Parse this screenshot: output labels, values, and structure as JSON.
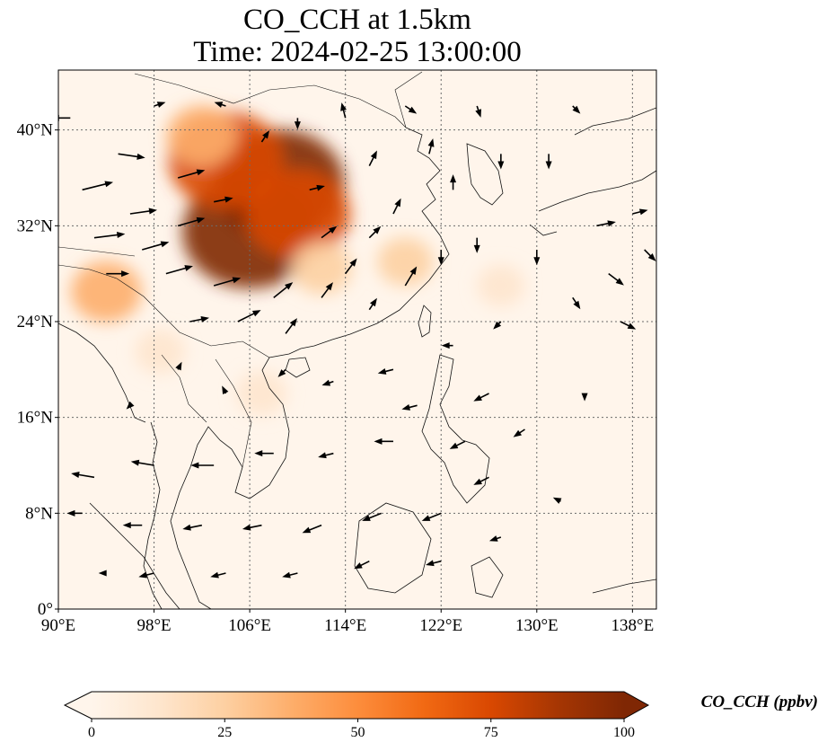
{
  "title": {
    "line1": "CO_CCH at 1.5km",
    "line2": "Time: 2024-02-25 13:00:00"
  },
  "map": {
    "lon_range": [
      90,
      140
    ],
    "lat_range": [
      0,
      45
    ],
    "xticks": [
      {
        "value": 90,
        "label": "90°E"
      },
      {
        "value": 98,
        "label": "98°E"
      },
      {
        "value": 106,
        "label": "106°E"
      },
      {
        "value": 114,
        "label": "114°E"
      },
      {
        "value": 122,
        "label": "122°E"
      },
      {
        "value": 130,
        "label": "130°E"
      },
      {
        "value": 138,
        "label": "138°E"
      }
    ],
    "yticks": [
      {
        "value": 0,
        "label": "0°"
      },
      {
        "value": 8,
        "label": "8°N"
      },
      {
        "value": 16,
        "label": "16°N"
      },
      {
        "value": 24,
        "label": "24°N"
      },
      {
        "value": 32,
        "label": "32°N"
      },
      {
        "value": 40,
        "label": "40°N"
      }
    ],
    "gridlines": true
  },
  "colorbar": {
    "label": "CO_CCH (ppbv)",
    "ticks": [
      {
        "value": 0,
        "label": "0"
      },
      {
        "value": 25,
        "label": "25"
      },
      {
        "value": 50,
        "label": "50"
      },
      {
        "value": 75,
        "label": "75"
      },
      {
        "value": 100,
        "label": "100"
      }
    ],
    "range": [
      0,
      100
    ],
    "extend": "both",
    "colormap": [
      "#fff5eb",
      "#fee6ce",
      "#fdd0a2",
      "#fdae6b",
      "#fd8d3c",
      "#f16913",
      "#d94801",
      "#a63603",
      "#7f2704"
    ]
  },
  "plumes": [
    {
      "lon": 106.0,
      "lat": 31.5,
      "value": 100
    },
    {
      "lon": 108.5,
      "lat": 35.5,
      "value": 95
    },
    {
      "lon": 104.0,
      "lat": 37.5,
      "value": 80
    },
    {
      "lon": 110.0,
      "lat": 33.0,
      "value": 70
    },
    {
      "lon": 102.0,
      "lat": 39.5,
      "value": 35
    },
    {
      "lon": 112.0,
      "lat": 28.5,
      "value": 25
    },
    {
      "lon": 119.0,
      "lat": 29.0,
      "value": 20
    },
    {
      "lon": 94.0,
      "lat": 26.5,
      "value": 35
    },
    {
      "lon": 107.0,
      "lat": 18.0,
      "value": 15
    },
    {
      "lon": 98.5,
      "lat": 21.5,
      "value": 15
    },
    {
      "lon": 127.0,
      "lat": 27.0,
      "value": 12
    }
  ],
  "wind": [
    {
      "lon": 91,
      "lat": 41,
      "u": -5,
      "v": 0
    },
    {
      "lon": 95,
      "lat": 38,
      "u": 7,
      "v": -1
    },
    {
      "lon": 92,
      "lat": 35,
      "u": 8,
      "v": 2
    },
    {
      "lon": 96,
      "lat": 33,
      "u": 7,
      "v": 1
    },
    {
      "lon": 93,
      "lat": 31,
      "u": 8,
      "v": 1
    },
    {
      "lon": 97,
      "lat": 30,
      "u": 7,
      "v": 2
    },
    {
      "lon": 94,
      "lat": 28,
      "u": 6,
      "v": 0
    },
    {
      "lon": 100,
      "lat": 36,
      "u": 7,
      "v": 2
    },
    {
      "lon": 100,
      "lat": 32,
      "u": 7,
      "v": 2
    },
    {
      "lon": 99,
      "lat": 28,
      "u": 7,
      "v": 2
    },
    {
      "lon": 103,
      "lat": 34,
      "u": 5,
      "v": 1
    },
    {
      "lon": 103,
      "lat": 27,
      "u": 7,
      "v": 2
    },
    {
      "lon": 105,
      "lat": 24,
      "u": 6,
      "v": 3
    },
    {
      "lon": 108,
      "lat": 26,
      "u": 5,
      "v": 4
    },
    {
      "lon": 101,
      "lat": 24,
      "u": 5,
      "v": 1
    },
    {
      "lon": 109,
      "lat": 23,
      "u": 3,
      "v": 4
    },
    {
      "lon": 112,
      "lat": 26,
      "u": 3,
      "v": 4
    },
    {
      "lon": 114,
      "lat": 28,
      "u": 3,
      "v": 4
    },
    {
      "lon": 116,
      "lat": 25,
      "u": 2,
      "v": 3
    },
    {
      "lon": 119,
      "lat": 27,
      "u": 3,
      "v": 5
    },
    {
      "lon": 118,
      "lat": 33,
      "u": 2,
      "v": 4
    },
    {
      "lon": 116,
      "lat": 37,
      "u": 2,
      "v": 4
    },
    {
      "lon": 114,
      "lat": 41,
      "u": -1,
      "v": 4
    },
    {
      "lon": 121,
      "lat": 38,
      "u": 1,
      "v": 4
    },
    {
      "lon": 123,
      "lat": 35,
      "u": 0,
      "v": 4
    },
    {
      "lon": 125,
      "lat": 31,
      "u": 0,
      "v": -4
    },
    {
      "lon": 127,
      "lat": 38,
      "u": 0,
      "v": -4
    },
    {
      "lon": 131,
      "lat": 38,
      "u": 0,
      "v": -4
    },
    {
      "lon": 130,
      "lat": 30,
      "u": 0,
      "v": -4
    },
    {
      "lon": 133,
      "lat": 26,
      "u": 2,
      "v": -3
    },
    {
      "lon": 135,
      "lat": 32,
      "u": 5,
      "v": 1
    },
    {
      "lon": 139,
      "lat": 30,
      "u": 3,
      "v": -3
    },
    {
      "lon": 137,
      "lat": 24,
      "u": 4,
      "v": -2
    },
    {
      "lon": 136,
      "lat": 28,
      "u": 4,
      "v": -3
    },
    {
      "lon": 127,
      "lat": 24,
      "u": -2,
      "v": -2
    },
    {
      "lon": 123,
      "lat": 22,
      "u": -3,
      "v": 0
    },
    {
      "lon": 118,
      "lat": 20,
      "u": -4,
      "v": -1
    },
    {
      "lon": 113,
      "lat": 19,
      "u": -3,
      "v": -1
    },
    {
      "lon": 109,
      "lat": 20,
      "u": -2,
      "v": -2
    },
    {
      "lon": 120,
      "lat": 17,
      "u": -4,
      "v": -1
    },
    {
      "lon": 126,
      "lat": 18,
      "u": -4,
      "v": -2
    },
    {
      "lon": 129,
      "lat": 15,
      "u": -3,
      "v": -2
    },
    {
      "lon": 124,
      "lat": 14,
      "u": -4,
      "v": -2
    },
    {
      "lon": 118,
      "lat": 14,
      "u": -5,
      "v": 0
    },
    {
      "lon": 113,
      "lat": 13,
      "u": -4,
      "v": -1
    },
    {
      "lon": 108,
      "lat": 13,
      "u": -5,
      "v": 0
    },
    {
      "lon": 103,
      "lat": 12,
      "u": -6,
      "v": 0
    },
    {
      "lon": 98,
      "lat": 12,
      "u": -6,
      "v": 1
    },
    {
      "lon": 93,
      "lat": 11,
      "u": -6,
      "v": 1
    },
    {
      "lon": 92,
      "lat": 8,
      "u": -4,
      "v": 0
    },
    {
      "lon": 97,
      "lat": 7,
      "u": -5,
      "v": 0
    },
    {
      "lon": 102,
      "lat": 7,
      "u": -5,
      "v": -1
    },
    {
      "lon": 107,
      "lat": 7,
      "u": -5,
      "v": -1
    },
    {
      "lon": 112,
      "lat": 7,
      "u": -5,
      "v": -2
    },
    {
      "lon": 117,
      "lat": 8,
      "u": -5,
      "v": -2
    },
    {
      "lon": 122,
      "lat": 8,
      "u": -5,
      "v": -2
    },
    {
      "lon": 126,
      "lat": 11,
      "u": -4,
      "v": -2
    },
    {
      "lon": 127,
      "lat": 6,
      "u": -3,
      "v": -1
    },
    {
      "lon": 122,
      "lat": 4,
      "u": -4,
      "v": -1
    },
    {
      "lon": 116,
      "lat": 4,
      "u": -4,
      "v": -2
    },
    {
      "lon": 110,
      "lat": 3,
      "u": -4,
      "v": -1
    },
    {
      "lon": 104,
      "lat": 3,
      "u": -4,
      "v": -1
    },
    {
      "lon": 98,
      "lat": 3,
      "u": -4,
      "v": -1
    },
    {
      "lon": 94,
      "lat": 3,
      "u": -2,
      "v": 0
    },
    {
      "lon": 132,
      "lat": 9,
      "u": -2,
      "v": 1
    },
    {
      "lon": 134,
      "lat": 18,
      "u": 0,
      "v": -2
    },
    {
      "lon": 100,
      "lat": 20,
      "u": 1,
      "v": 2
    },
    {
      "lon": 104,
      "lat": 18,
      "u": -1,
      "v": 2
    },
    {
      "lon": 96,
      "lat": 17,
      "u": -1,
      "v": -1
    },
    {
      "lon": 111,
      "lat": 35,
      "u": 4,
      "v": 1
    },
    {
      "lon": 107,
      "lat": 39,
      "u": 2,
      "v": 3
    },
    {
      "lon": 110,
      "lat": 41,
      "u": 0,
      "v": -3
    },
    {
      "lon": 104,
      "lat": 42,
      "u": -3,
      "v": 1
    },
    {
      "lon": 98,
      "lat": 42,
      "u": 3,
      "v": 1
    },
    {
      "lon": 122,
      "lat": 30,
      "u": 0,
      "v": -4
    },
    {
      "lon": 119,
      "lat": 42,
      "u": 3,
      "v": -2
    },
    {
      "lon": 125,
      "lat": 42,
      "u": 1,
      "v": -3
    },
    {
      "lon": 116,
      "lat": 31,
      "u": 3,
      "v": 3
    },
    {
      "lon": 112,
      "lat": 31,
      "u": 4,
      "v": 3
    },
    {
      "lon": 138,
      "lat": 33,
      "u": 4,
      "v": 1
    },
    {
      "lon": 133,
      "lat": 42,
      "u": 2,
      "v": -2
    }
  ]
}
